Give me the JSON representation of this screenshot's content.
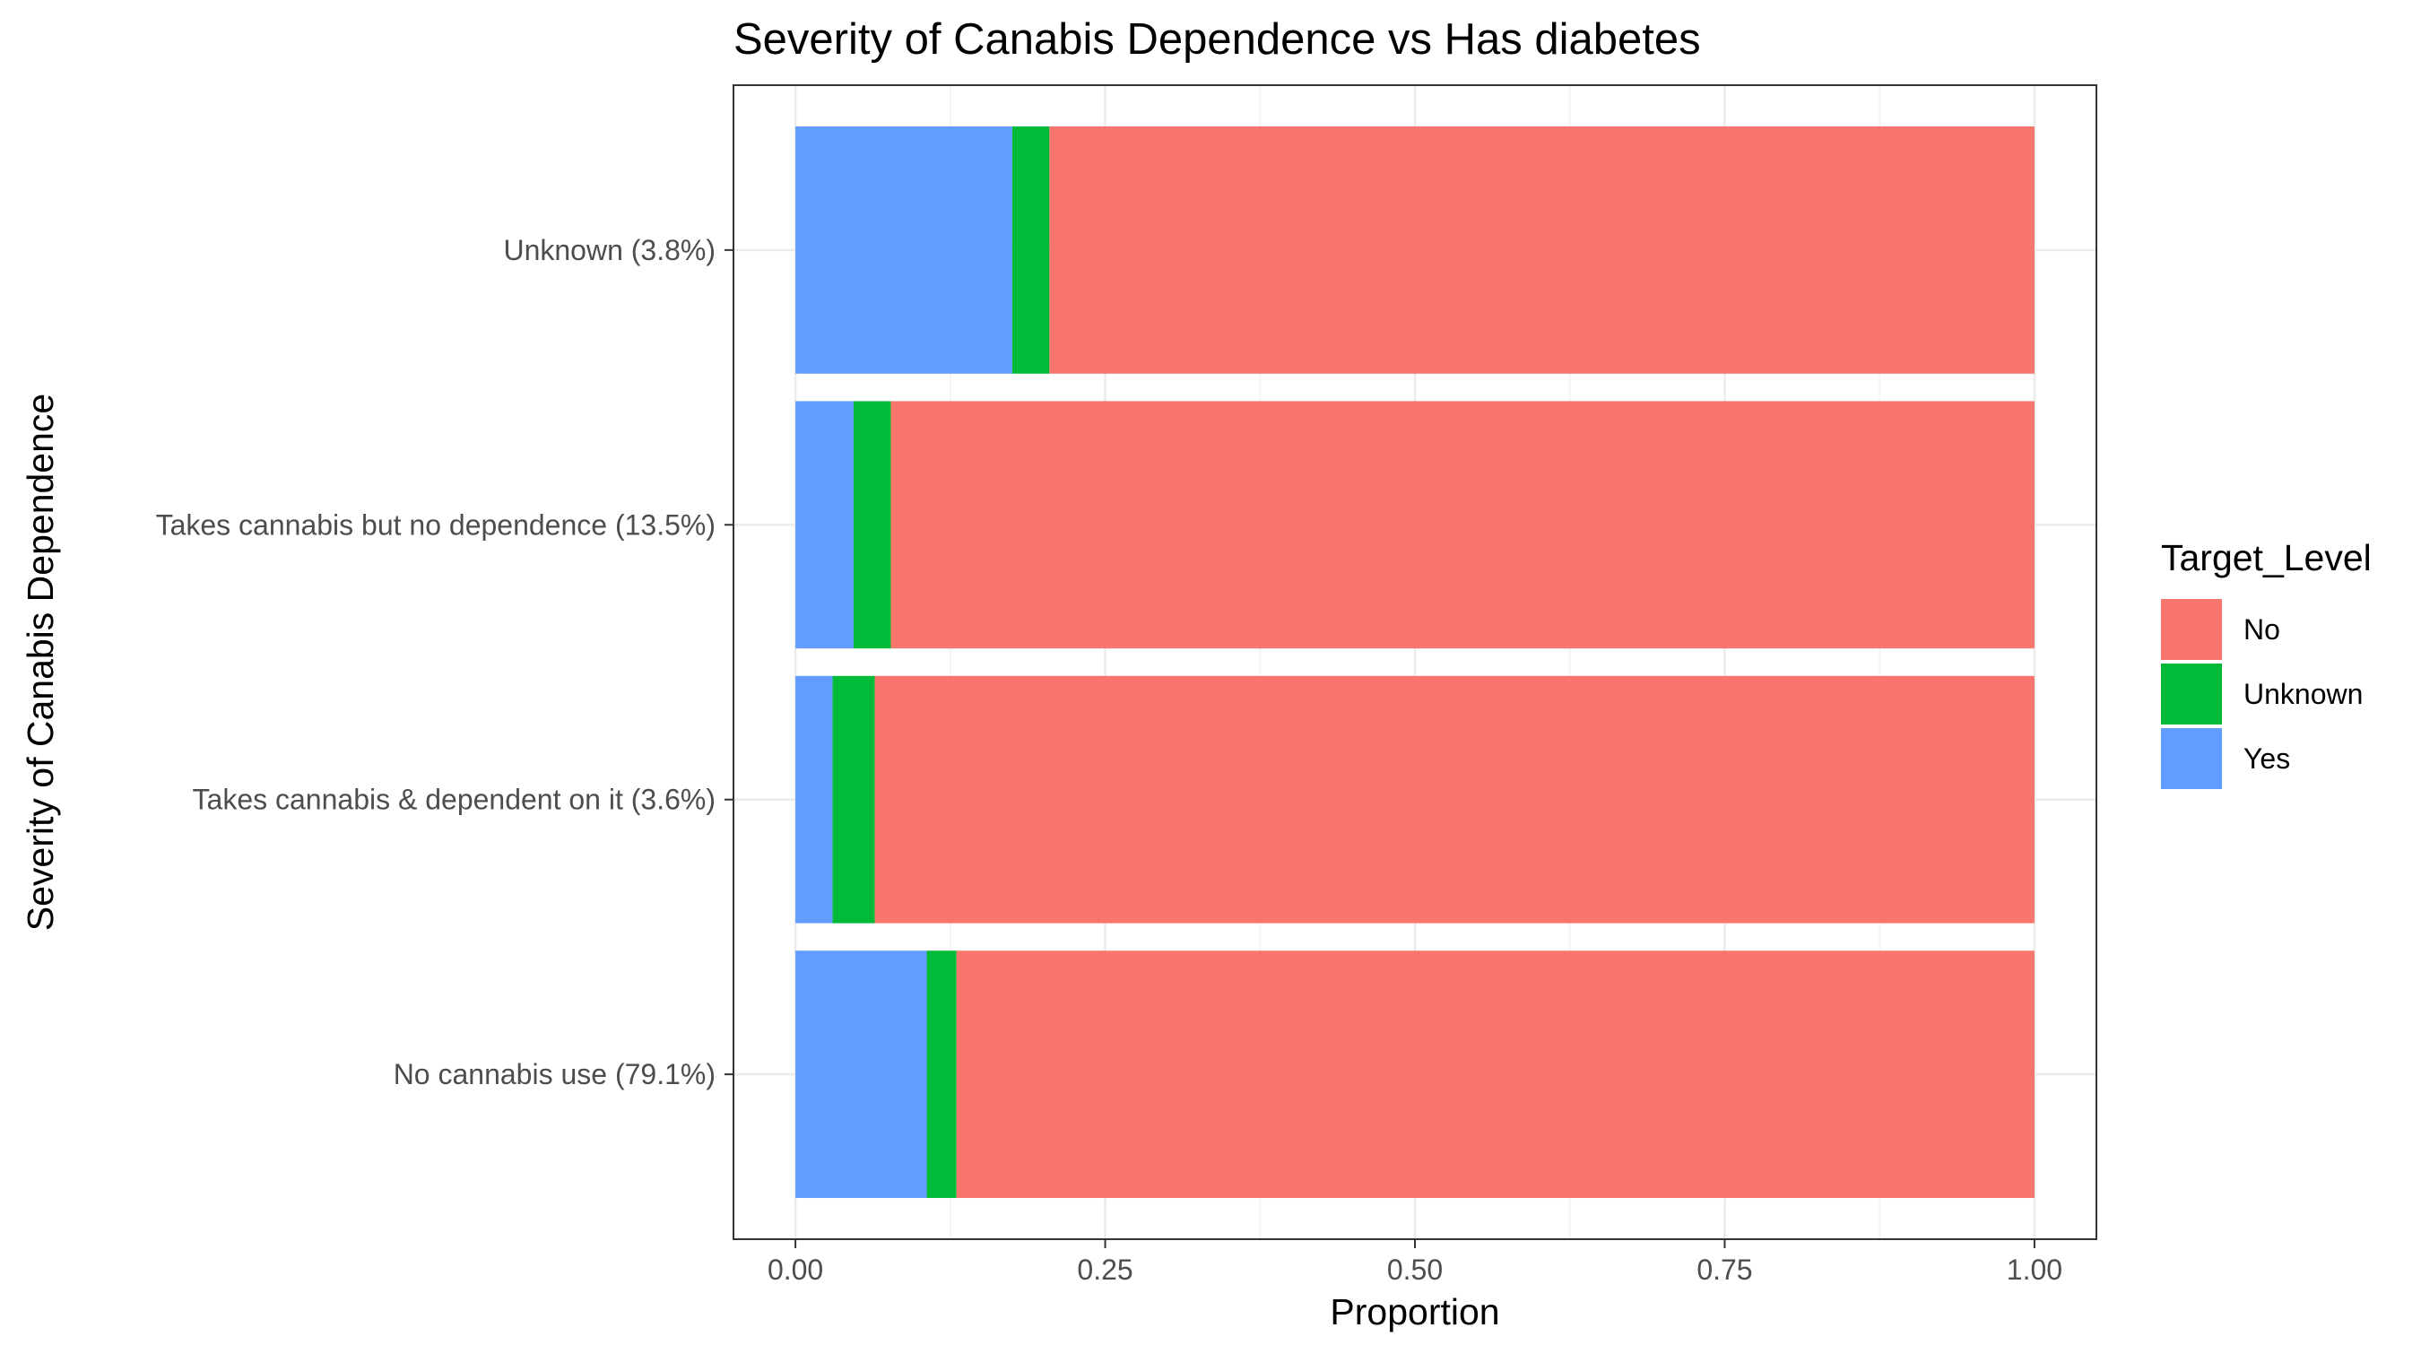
{
  "chart_data": {
    "type": "bar",
    "orientation": "horizontal",
    "stacked": true,
    "title": "Severity of Canabis Dependence vs Has diabetes",
    "xlabel": "Proportion",
    "ylabel": "Severity of Canabis Dependence",
    "xlim": [
      0,
      1
    ],
    "x_ticks": [
      "0.00",
      "0.25",
      "0.50",
      "0.75",
      "1.00"
    ],
    "x_tick_values": [
      0,
      0.25,
      0.5,
      0.75,
      1
    ],
    "grid": true,
    "categories": [
      "Unknown (3.8%)",
      "Takes cannabis but no dependence (13.5%)",
      "Takes cannabis & dependent on it (3.6%)",
      "No cannabis use (79.1%)"
    ],
    "series": [
      {
        "name": "Yes",
        "color": "#619CFF",
        "values": [
          0.175,
          0.047,
          0.03,
          0.106
        ]
      },
      {
        "name": "Unknown",
        "color": "#00BA38",
        "values": [
          0.03,
          0.03,
          0.034,
          0.024
        ]
      },
      {
        "name": "No",
        "color": "#F8766D",
        "values": [
          0.795,
          0.923,
          0.936,
          0.87
        ]
      }
    ],
    "legend": {
      "title": "Target_Level",
      "position": "right",
      "entries": [
        {
          "label": "No",
          "color": "#F8766D"
        },
        {
          "label": "Unknown",
          "color": "#00BA38"
        },
        {
          "label": "Yes",
          "color": "#619CFF"
        }
      ]
    }
  }
}
